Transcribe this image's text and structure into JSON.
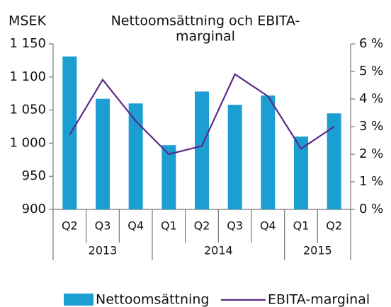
{
  "chart_data": {
    "type": "bar",
    "title": [
      "Nettoomsättning och EBITA-",
      "marginal"
    ],
    "y_label": "MSEK",
    "categories": [
      "Q2",
      "Q3",
      "Q4",
      "Q1",
      "Q2",
      "Q3",
      "Q4",
      "Q1",
      "Q2"
    ],
    "category_groups": [
      "2013",
      "2013",
      "2013",
      "2014",
      "2014",
      "2014",
      "2014",
      "2015",
      "2015"
    ],
    "series": [
      {
        "name": "Nettoomsättning",
        "color": "#1b9fd3",
        "values": [
          1131,
          1067,
          1060,
          997,
          1078,
          1058,
          1072,
          1010,
          1045
        ]
      },
      {
        "name": "EBITA-marginal",
        "color": "#5b2a86",
        "type": "line",
        "axis": "y2",
        "values": [
          2.7,
          4.7,
          3.2,
          2.0,
          2.3,
          4.9,
          4.1,
          2.2,
          3.0
        ]
      }
    ],
    "ylim": [
      900,
      1150
    ],
    "yticks": [
      900,
      950,
      {
        "value": 1000,
        "label": "1 000"
      },
      {
        "value": 1050,
        "label": "1 050"
      },
      {
        "value": 1100,
        "label": "1 100"
      },
      {
        "value": 1150,
        "label": "1 150"
      }
    ],
    "y2lim": [
      0,
      6
    ],
    "y2ticks": [
      {
        "value": 0,
        "label": "0 %"
      },
      {
        "value": 1,
        "label": "1 %"
      },
      {
        "value": 2,
        "label": "2 %"
      },
      {
        "value": 3,
        "label": "3 %"
      },
      {
        "value": 4,
        "label": "4 %"
      },
      {
        "value": 5,
        "label": "5 %"
      },
      {
        "value": 6,
        "label": "6 %"
      }
    ],
    "legend": "bottom"
  }
}
